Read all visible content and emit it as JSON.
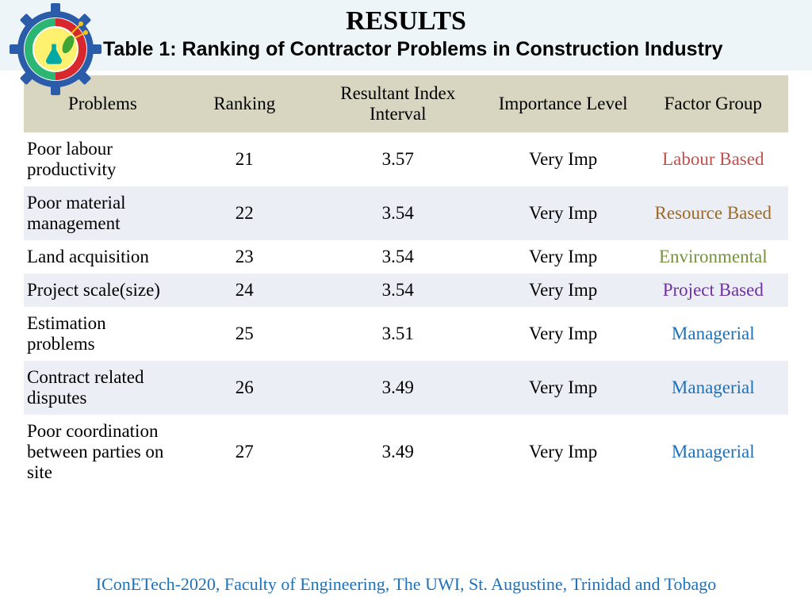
{
  "header": {
    "title": "RESULTS",
    "subtitle": "Table 1: Ranking of Contractor Problems in Construction Industry"
  },
  "logo": {
    "label": "IConETech-2020",
    "gear_color": "#2a5caa",
    "ring_red": "#d9272e",
    "ring_green": "#2bb673",
    "flask_color": "#00a9a5",
    "leaf_color": "#3fa535",
    "circuit_color": "#f5c518"
  },
  "table": {
    "columns": [
      "Problems",
      "Ranking",
      "Resultant Index Interval",
      "Importance Level",
      "Factor Group"
    ],
    "header_bg": "#d8d6c1",
    "row_alt_bg": "#ebeef5",
    "row_bg": "#ffffff",
    "font_size": 23,
    "factor_colors": {
      "Labour Based": "#c0504d",
      "Resource Based": "#9c6a24",
      "Environmental": "#76923c",
      "Project Based": "#7030a0",
      "Managerial": "#1f71b8"
    },
    "rows": [
      {
        "problem": "Poor labour productivity",
        "rank": "21",
        "rii": "3.57",
        "imp": "Very Imp",
        "fg": "Labour Based",
        "fg_class": "fg-labour"
      },
      {
        "problem": "Poor material management",
        "rank": "22",
        "rii": "3.54",
        "imp": "Very Imp",
        "fg": "Resource Based",
        "fg_class": "fg-resource"
      },
      {
        "problem": "Land acquisition",
        "rank": "23",
        "rii": "3.54",
        "imp": "Very Imp",
        "fg": "Environmental",
        "fg_class": "fg-env"
      },
      {
        "problem": "Project scale(size)",
        "rank": "24",
        "rii": "3.54",
        "imp": "Very Imp",
        "fg": "Project Based",
        "fg_class": "fg-project"
      },
      {
        "problem": "Estimation problems",
        "rank": "25",
        "rii": "3.51",
        "imp": "Very Imp",
        "fg": "Managerial",
        "fg_class": "fg-managerial"
      },
      {
        "problem": "Contract related disputes",
        "rank": "26",
        "rii": "3.49",
        "imp": "Very Imp",
        "fg": "Managerial",
        "fg_class": "fg-managerial"
      },
      {
        "problem": "Poor coordination between parties on site",
        "rank": "27",
        "rii": "3.49",
        "imp": "Very Imp",
        "fg": "Managerial",
        "fg_class": "fg-managerial"
      }
    ]
  },
  "footer": {
    "text": "IConETech-2020, Faculty of Engineering, The UWI, St. Augustine, Trinidad and Tobago",
    "color": "#1f71b8"
  }
}
